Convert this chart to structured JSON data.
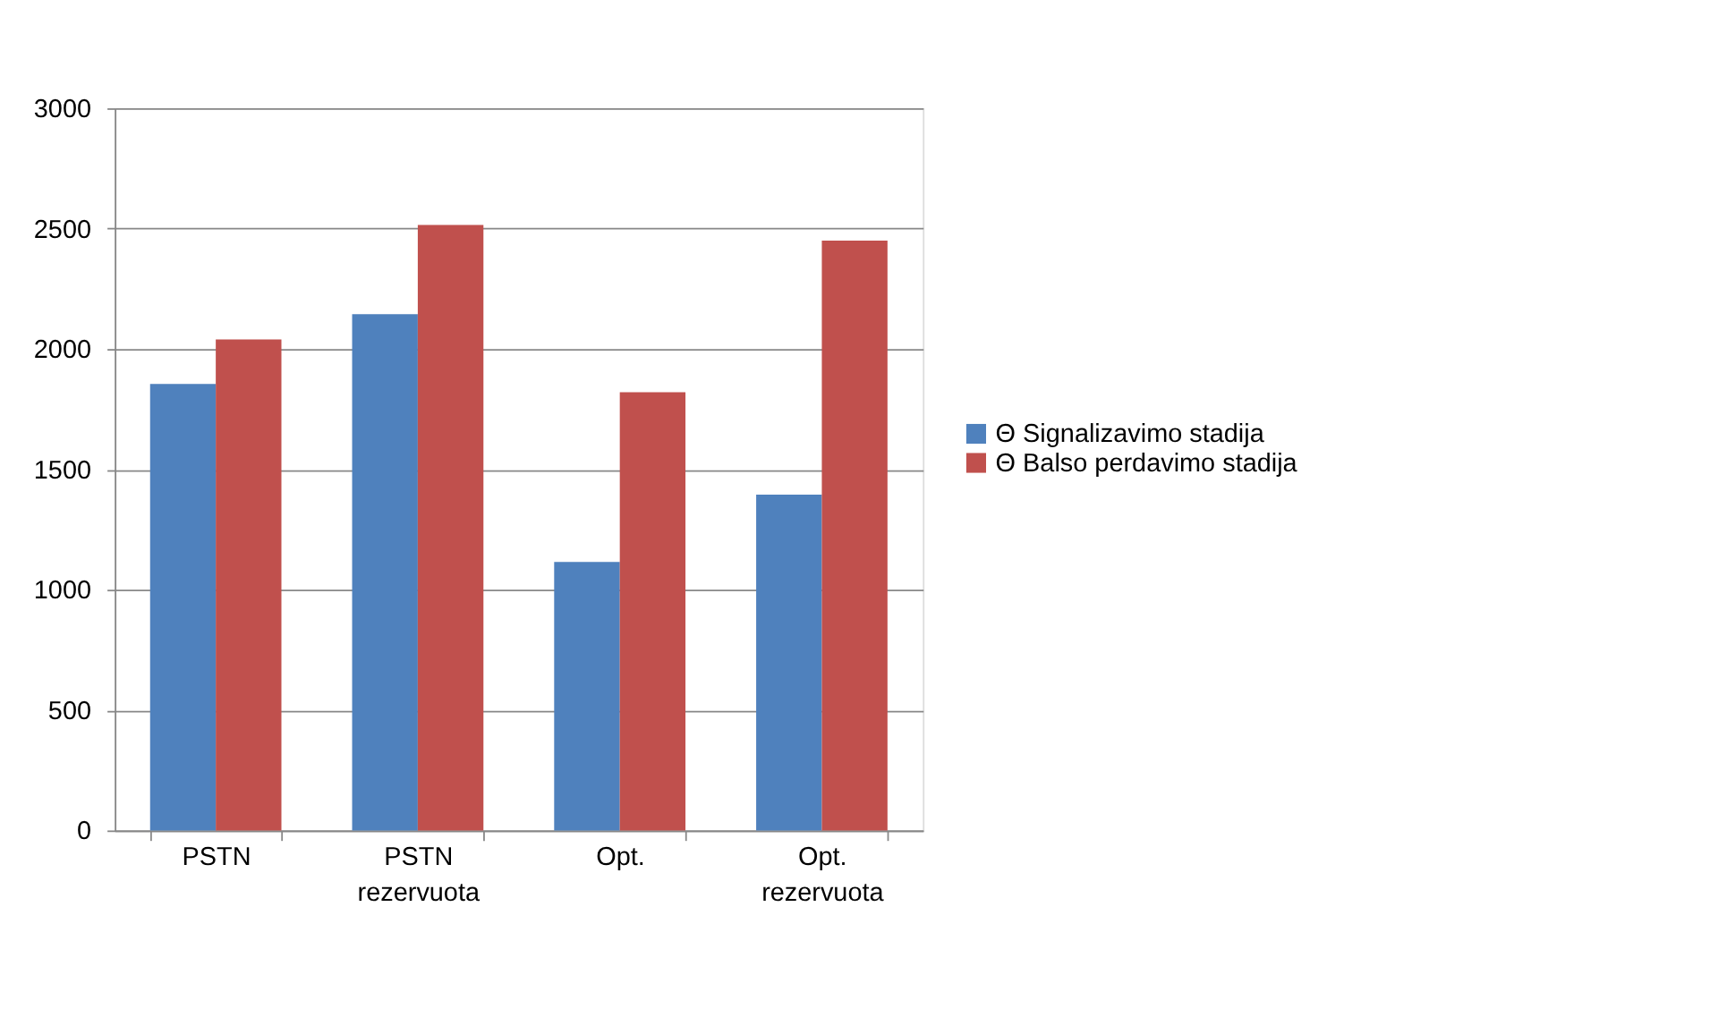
{
  "chart_data": {
    "type": "bar",
    "categories": [
      "PSTN",
      "PSTN rezervuota",
      "Opt.",
      "Opt. rezervuota"
    ],
    "series": [
      {
        "name": "Θ Signalizavimo stadija",
        "color": "#4f81bd",
        "values": [
          1855,
          2145,
          1115,
          1395
        ]
      },
      {
        "name": "Θ Balso perdavimo stadija",
        "color": "#c0504d",
        "values": [
          2040,
          2515,
          1820,
          2450
        ]
      }
    ],
    "ylim": [
      0,
      3000
    ],
    "yticks": [
      0,
      500,
      1000,
      1500,
      2000,
      2500,
      3000
    ],
    "grid": "y",
    "legend": "right"
  }
}
